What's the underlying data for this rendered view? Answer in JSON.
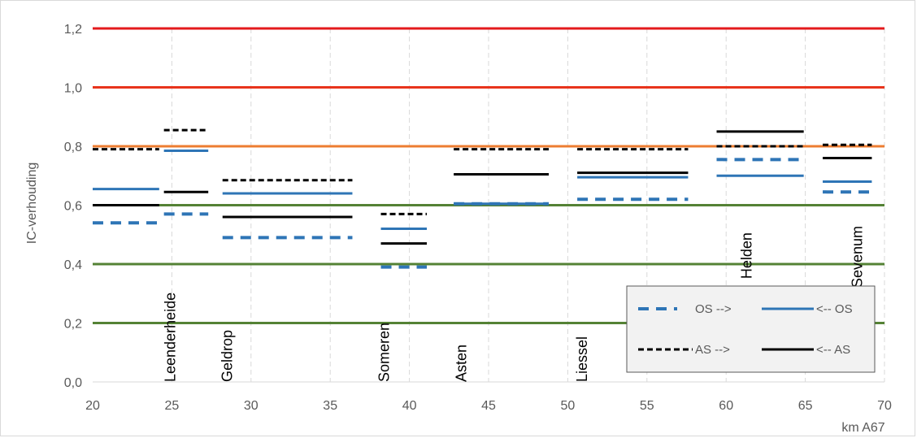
{
  "chart_data": {
    "type": "line",
    "title": "",
    "xlabel": "km A67",
    "ylabel": "IC-verhouding",
    "xlim": [
      20,
      70
    ],
    "ylim": [
      0,
      1.2
    ],
    "x_ticks": [
      "20",
      "25",
      "30",
      "35",
      "40",
      "45",
      "50",
      "55",
      "60",
      "65",
      "70"
    ],
    "y_ticks": [
      "0,0",
      "0,2",
      "0,4",
      "0,6",
      "0,8",
      "1,0",
      "1,2"
    ],
    "grid": "vertical dashed",
    "reference_lines": [
      {
        "y": 1.2,
        "color": "#e31a1c"
      },
      {
        "y": 1.0,
        "color": "#e8341c"
      },
      {
        "y": 0.8,
        "color": "#ed7d31"
      },
      {
        "y": 0.6,
        "color": "#548235"
      },
      {
        "y": 0.4,
        "color": "#548235"
      },
      {
        "y": 0.2,
        "color": "#548235"
      }
    ],
    "series": [
      {
        "name": "OS -->",
        "color": "#2e75b6",
        "style": "dashed-thick",
        "segments": [
          [
            20,
            24.2,
            0.54
          ],
          [
            24.5,
            27.3,
            0.57
          ],
          [
            28.2,
            36.4,
            0.49
          ],
          [
            38.2,
            41.1,
            0.39
          ],
          [
            42.8,
            48.8,
            0.605
          ],
          [
            50.6,
            57.6,
            0.62
          ],
          [
            59.4,
            64.9,
            0.755
          ],
          [
            66.1,
            69.2,
            0.645
          ]
        ]
      },
      {
        "name": "<-- OS",
        "color": "#2e75b6",
        "style": "solid",
        "segments": [
          [
            20,
            24.2,
            0.655
          ],
          [
            24.5,
            27.3,
            0.785
          ],
          [
            28.2,
            36.4,
            0.64
          ],
          [
            38.2,
            41.1,
            0.52
          ],
          [
            42.8,
            48.8,
            0.605
          ],
          [
            50.6,
            57.6,
            0.695
          ],
          [
            59.4,
            64.9,
            0.7
          ],
          [
            66.1,
            69.2,
            0.68
          ]
        ]
      },
      {
        "name": "AS -->",
        "color": "#000000",
        "style": "dashed",
        "segments": [
          [
            20,
            24.2,
            0.79
          ],
          [
            24.5,
            27.3,
            0.855
          ],
          [
            28.2,
            36.4,
            0.685
          ],
          [
            38.2,
            41.1,
            0.57
          ],
          [
            42.8,
            48.8,
            0.79
          ],
          [
            50.6,
            57.6,
            0.79
          ],
          [
            59.4,
            64.9,
            0.8
          ],
          [
            66.1,
            69.2,
            0.805
          ]
        ]
      },
      {
        "name": "<-- AS",
        "color": "#000000",
        "style": "solid",
        "segments": [
          [
            20,
            24.2,
            0.6
          ],
          [
            24.5,
            27.3,
            0.645
          ],
          [
            28.2,
            36.4,
            0.56
          ],
          [
            38.2,
            41.1,
            0.47
          ],
          [
            42.8,
            48.8,
            0.705
          ],
          [
            50.6,
            57.6,
            0.71
          ],
          [
            59.4,
            64.9,
            0.85
          ],
          [
            66.1,
            69.2,
            0.76
          ]
        ]
      }
    ],
    "annotations": [
      {
        "text": "Leenderheide",
        "x": 25.2,
        "y": 0.0
      },
      {
        "text": "Geldrop",
        "x": 28.8,
        "y": 0.0
      },
      {
        "text": "Someren",
        "x": 38.7,
        "y": 0.0
      },
      {
        "text": "Asten",
        "x": 43.6,
        "y": 0.0
      },
      {
        "text": "Liessel",
        "x": 51.2,
        "y": 0.0
      },
      {
        "text": "Helden",
        "x": 61.6,
        "y": 0.35
      },
      {
        "text": "Sevenum",
        "x": 68.6,
        "y": 0.32
      }
    ],
    "legend": {
      "position": "bottom-right",
      "items": [
        "OS -->",
        "<-- OS",
        "AS -->",
        "<-- AS"
      ]
    }
  }
}
